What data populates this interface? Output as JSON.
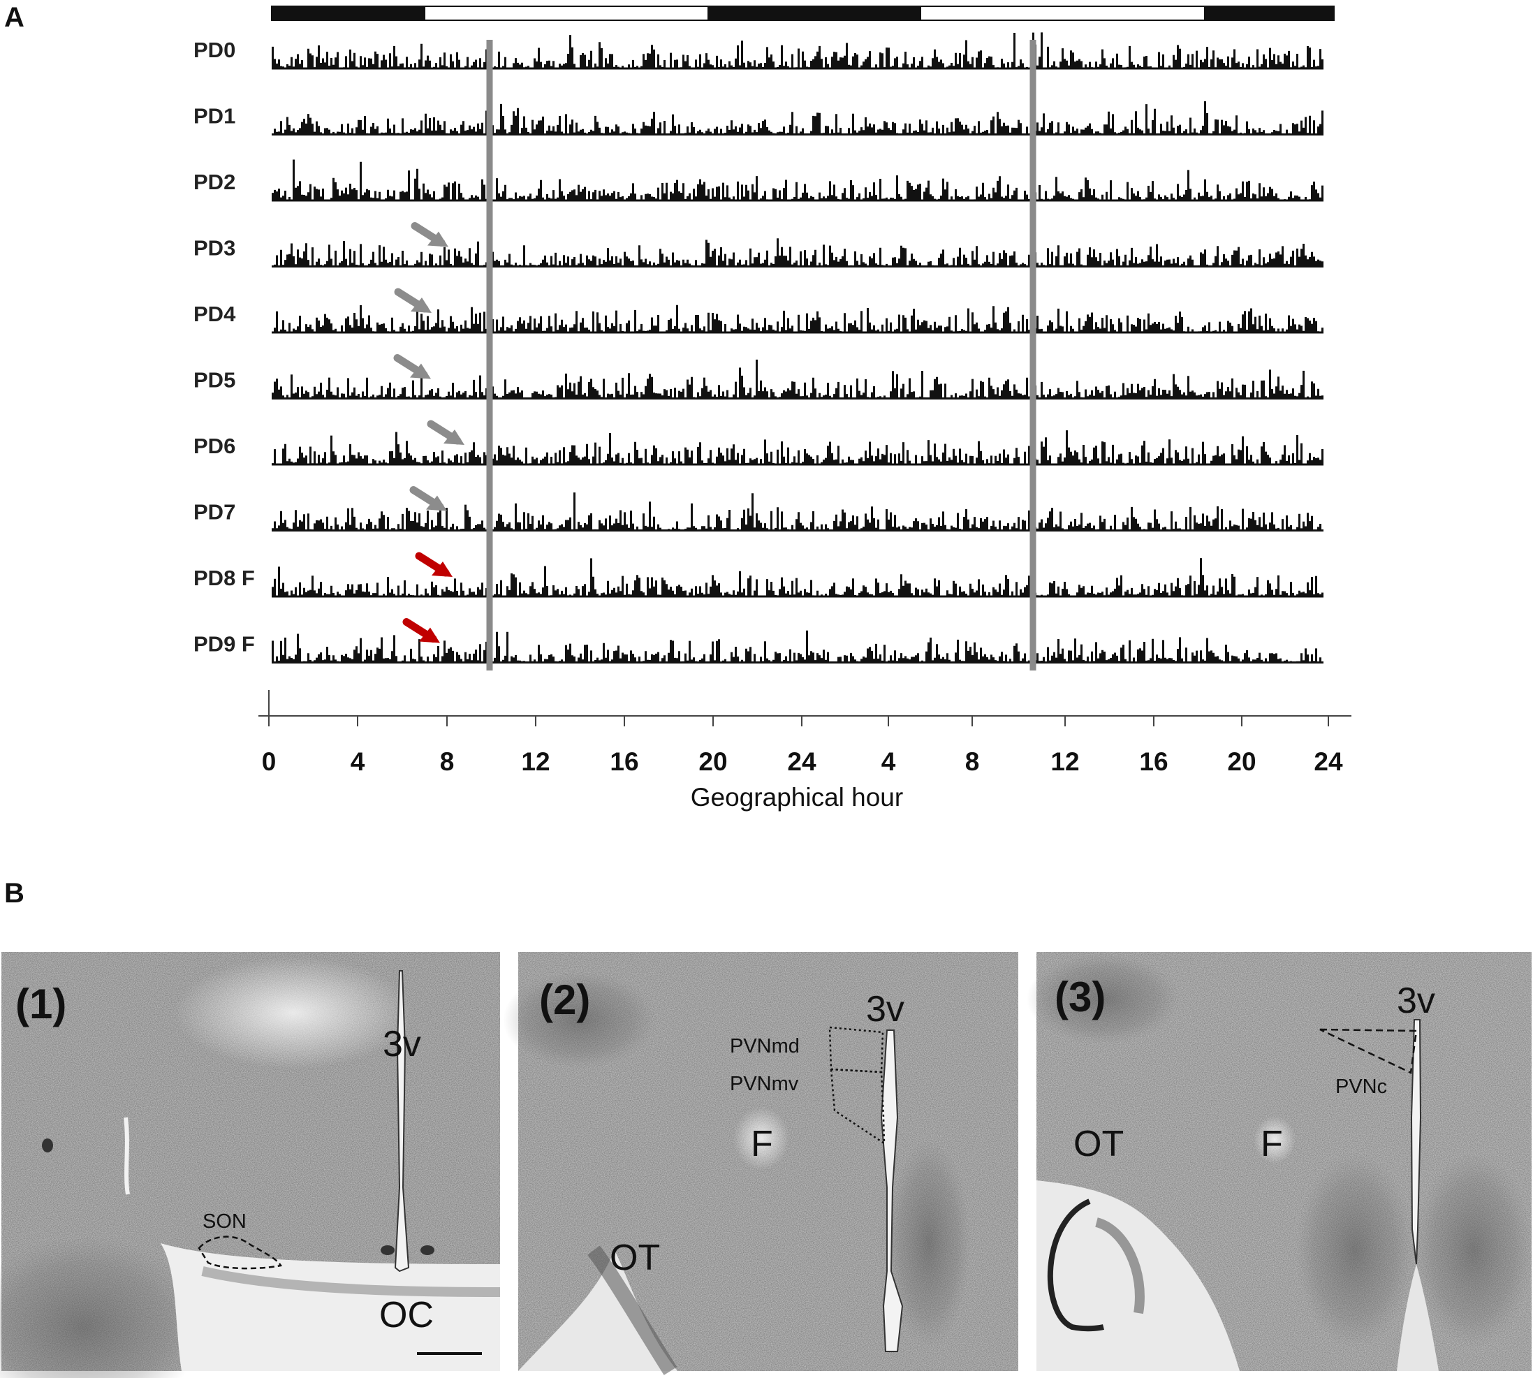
{
  "panel_a": {
    "letter": "A",
    "x_axis_title": "Geographical hour",
    "x_tick_labels": [
      "0",
      "4",
      "8",
      "12",
      "16",
      "20",
      "24",
      "4",
      "8",
      "12",
      "16",
      "20",
      "24"
    ],
    "light_dark_bar": [
      "dark",
      "light",
      "dark",
      "light",
      "dark"
    ],
    "rows": [
      {
        "label": "PD0",
        "arrow": "none"
      },
      {
        "label": "PD1",
        "arrow": "none"
      },
      {
        "label": "PD2",
        "arrow": "none"
      },
      {
        "label": "PD3",
        "arrow": "gray"
      },
      {
        "label": "PD4",
        "arrow": "gray"
      },
      {
        "label": "PD5",
        "arrow": "gray"
      },
      {
        "label": "PD6",
        "arrow": "gray"
      },
      {
        "label": "PD7",
        "arrow": "gray"
      },
      {
        "label": "PD8 F",
        "arrow": "red"
      },
      {
        "label": "PD9 F",
        "arrow": "red"
      }
    ],
    "colors": {
      "bars": "#111111",
      "marker_line": "#8a8a8a",
      "arrow_gray": "#8c8c8c",
      "arrow_red": "#c00000"
    }
  },
  "panel_b": {
    "letter": "B",
    "sections": [
      {
        "number": "(1)",
        "labels": [
          "3v",
          "SON",
          "OC"
        ]
      },
      {
        "number": "(2)",
        "labels": [
          "3v",
          "PVNmd",
          "PVNmv",
          "F",
          "OT"
        ]
      },
      {
        "number": "(3)",
        "labels": [
          "3v",
          "PVNc",
          "OT",
          "F"
        ]
      }
    ]
  }
}
